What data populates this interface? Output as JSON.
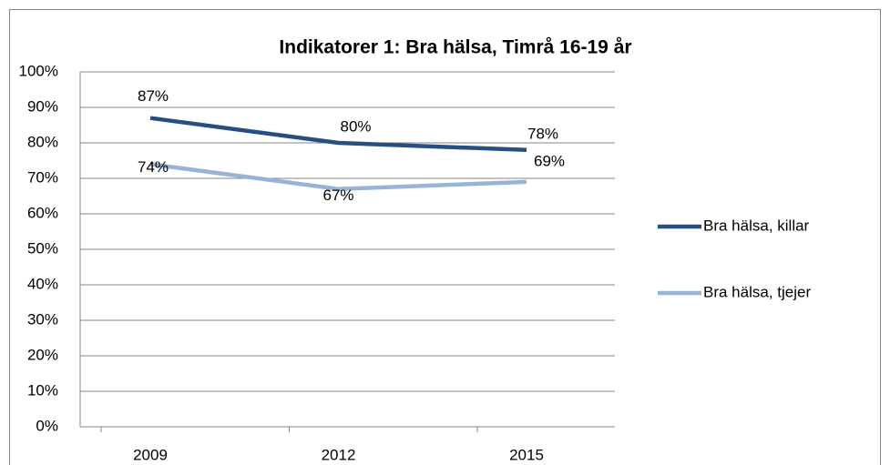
{
  "chart_data": {
    "type": "line",
    "title": "Indikatorer 1: Bra hälsa, Timrå 16-19 år",
    "categories": [
      "2009",
      "2012",
      "2015"
    ],
    "series": [
      {
        "name": "Bra hälsa, killar",
        "color": "#264e7e",
        "values": [
          87,
          80,
          78
        ],
        "value_labels": [
          "87%",
          "80%",
          "78%"
        ]
      },
      {
        "name": "Bra hälsa, tjejer",
        "color": "#97b4d8",
        "values": [
          74,
          67,
          69
        ],
        "value_labels": [
          "74%",
          "67%",
          "69%"
        ]
      }
    ],
    "ylim": [
      0,
      100
    ],
    "yticks": [
      {
        "value": 0,
        "label": "0%"
      },
      {
        "value": 10,
        "label": "10%"
      },
      {
        "value": 20,
        "label": "20%"
      },
      {
        "value": 30,
        "label": "30%"
      },
      {
        "value": 40,
        "label": "40%"
      },
      {
        "value": 50,
        "label": "50%"
      },
      {
        "value": 60,
        "label": "60%"
      },
      {
        "value": 70,
        "label": "70%"
      },
      {
        "value": 80,
        "label": "80%"
      },
      {
        "value": 90,
        "label": "90%"
      },
      {
        "value": 100,
        "label": "100%"
      }
    ],
    "grid": true,
    "legend": "right"
  }
}
